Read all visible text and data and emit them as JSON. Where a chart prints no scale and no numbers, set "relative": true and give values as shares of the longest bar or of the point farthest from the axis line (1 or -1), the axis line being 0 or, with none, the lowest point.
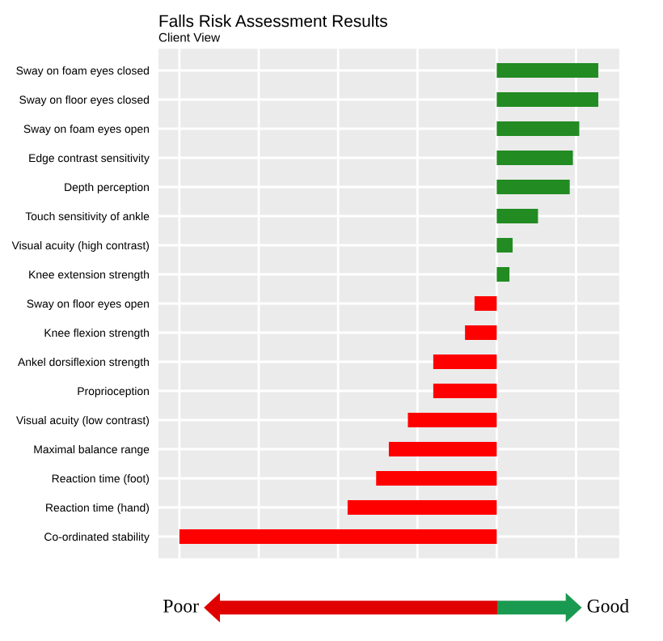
{
  "chart_data": {
    "type": "bar",
    "orientation": "horizontal",
    "relative": true,
    "title": "Falls Risk Assessment Results",
    "subtitle": "Client View",
    "categories": [
      "Sway on foam eyes closed",
      "Sway on floor eyes closed",
      "Sway on foam eyes open",
      "Edge contrast sensitivity",
      "Depth perception",
      "Touch sensitivity of ankle",
      "Visual acuity (high contrast)",
      "Knee extension strength",
      "Sway on floor eyes open",
      "Knee flexion strength",
      "Ankel dorsiflexion strength",
      "Proprioception",
      "Visual acuity (low contrast)",
      "Maximal balance range",
      "Reaction time (foot)",
      "Reaction time (hand)",
      "Co-ordinated stability"
    ],
    "values": [
      0.32,
      0.32,
      0.26,
      0.24,
      0.23,
      0.13,
      0.05,
      0.04,
      -0.07,
      -0.1,
      -0.2,
      -0.2,
      -0.28,
      -0.34,
      -0.38,
      -0.47,
      -1
    ],
    "colors": [
      "#228b22",
      "#228b22",
      "#228b22",
      "#228b22",
      "#228b22",
      "#228b22",
      "#228b22",
      "#228b22",
      "#ff0000",
      "#ff0000",
      "#ff0000",
      "#ff0000",
      "#ff0000",
      "#ff0000",
      "#ff0000",
      "#ff0000",
      "#ff0000"
    ],
    "grid": true,
    "annotations": [
      "Poor",
      "Good"
    ]
  }
}
